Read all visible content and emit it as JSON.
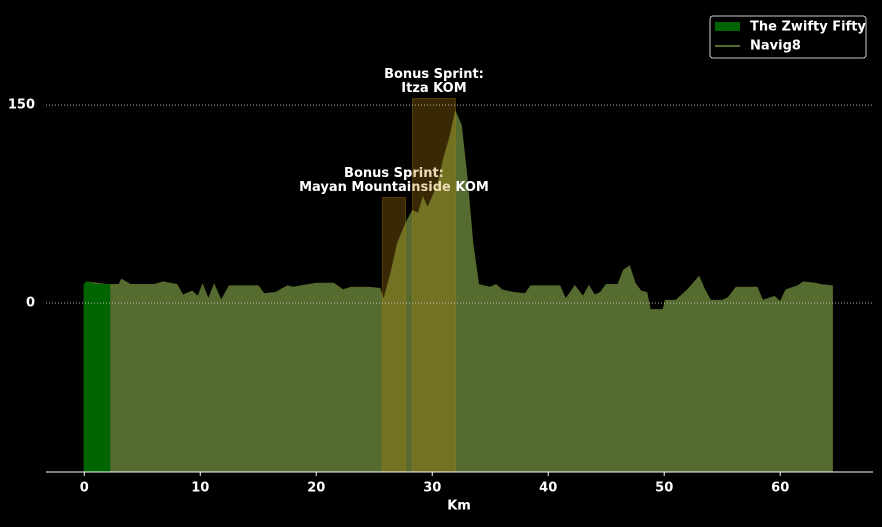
{
  "chart_data": {
    "type": "area",
    "xlabel": "Km",
    "xlim": [
      -3.3,
      68
    ],
    "ylim": [
      -128,
      222
    ],
    "xticks": [
      0,
      10,
      20,
      30,
      40,
      50,
      60
    ],
    "yticks": [
      0,
      150
    ],
    "grid": true,
    "legend": "upper right",
    "series": [
      {
        "name": "The Zwifty Fifty",
        "color": "#006400",
        "x": [
          0,
          0.2,
          1,
          2.2
        ],
        "values": [
          14,
          16,
          14,
          14
        ]
      },
      {
        "name": "Navig8",
        "color": "#556b2f",
        "x": [
          0,
          0.2,
          2,
          3,
          3.2,
          4,
          6,
          6.8,
          8,
          8.5,
          9.3,
          9.8,
          10.2,
          10.7,
          11.2,
          11.8,
          12.5,
          15,
          15.5,
          16.5,
          17.5,
          18,
          20,
          21.5,
          22.3,
          23,
          24.5,
          25.5,
          25.8,
          26.5,
          27,
          27.8,
          28.3,
          28.8,
          29.2,
          29.6,
          30,
          30.5,
          31,
          31.5,
          32,
          32.5,
          33,
          33.5,
          34,
          35,
          35.5,
          36,
          37,
          38,
          38.5,
          40,
          41,
          41.5,
          42.3,
          43,
          43.5,
          44,
          44.5,
          45,
          46,
          46.5,
          47,
          47.5,
          48,
          48.5,
          48.8,
          49.9,
          50.1,
          51,
          52,
          53,
          53.5,
          54,
          55,
          55.5,
          56.2,
          57,
          58,
          58.5,
          59.5,
          60,
          60.5,
          61.5,
          62,
          63,
          63.5,
          64.5
        ],
        "values": [
          14,
          16,
          14,
          14,
          18,
          14,
          14,
          16,
          14,
          6,
          9,
          5,
          14,
          3,
          14,
          2,
          13,
          13,
          7,
          8,
          13,
          12,
          15,
          15,
          10,
          12,
          12,
          11,
          2,
          25,
          45,
          62,
          70,
          68,
          80,
          72,
          80,
          90,
          110,
          125,
          145,
          135,
          95,
          45,
          14,
          12,
          14,
          10,
          8,
          7,
          13,
          13,
          13,
          3,
          13,
          5,
          13,
          6,
          8,
          14,
          14,
          25,
          28,
          15,
          9,
          8,
          -5,
          -5,
          2,
          2,
          10,
          20,
          10,
          2,
          2,
          4,
          12,
          12,
          12,
          2,
          5,
          1,
          10,
          13,
          16,
          15,
          14,
          13
        ]
      }
    ],
    "sprints": [
      {
        "label": [
          "Bonus Sprint:",
          "Mayan Mountainside KOM"
        ],
        "x": [
          25.7,
          27.7
        ],
        "top": 80
      },
      {
        "label": [
          "Bonus Sprint:",
          "Itza KOM"
        ],
        "x": [
          28.3,
          32
        ],
        "top": 155
      }
    ]
  }
}
